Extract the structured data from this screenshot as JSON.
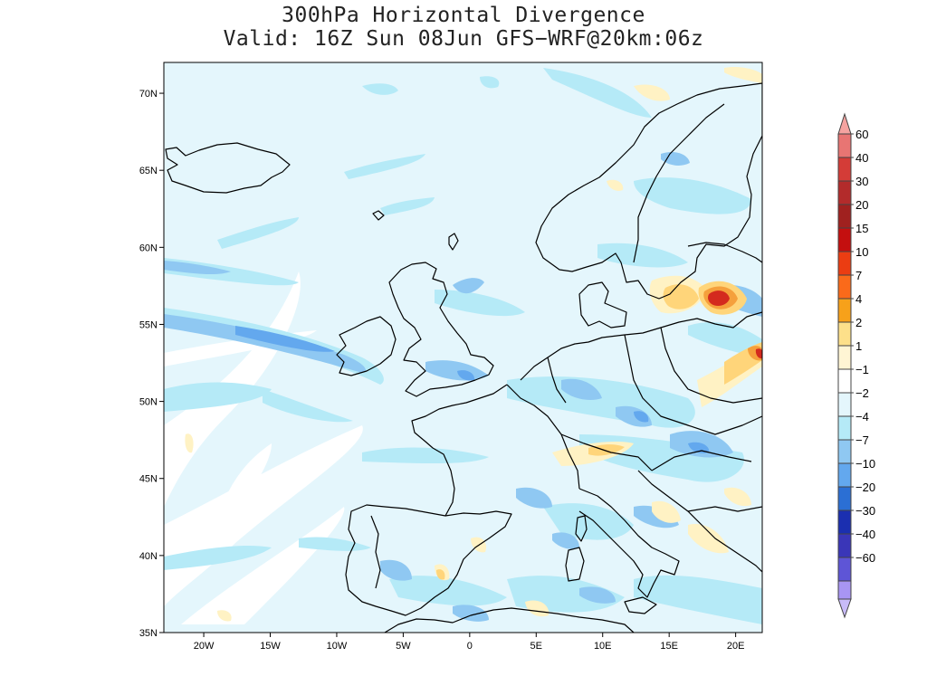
{
  "title": {
    "line1": "300hPa Horizontal Divergence",
    "line2": "Valid: 16Z Sun 08Jun GFS−WRF@20km:06z"
  },
  "map": {
    "lon_range": [
      -23,
      22
    ],
    "lat_range": [
      35,
      72
    ],
    "x_ticks": [
      {
        "value": -20,
        "label": "20W"
      },
      {
        "value": -15,
        "label": "15W"
      },
      {
        "value": -10,
        "label": "10W"
      },
      {
        "value": -5,
        "label": "5W"
      },
      {
        "value": 0,
        "label": "0"
      },
      {
        "value": 5,
        "label": "5E"
      },
      {
        "value": 10,
        "label": "10E"
      },
      {
        "value": 15,
        "label": "15E"
      },
      {
        "value": 20,
        "label": "20E"
      }
    ],
    "y_ticks": [
      {
        "value": 70,
        "label": "70N"
      },
      {
        "value": 65,
        "label": "65N"
      },
      {
        "value": 60,
        "label": "60N"
      },
      {
        "value": 55,
        "label": "55N"
      },
      {
        "value": 50,
        "label": "50N"
      },
      {
        "value": 45,
        "label": "45N"
      },
      {
        "value": 40,
        "label": "40N"
      },
      {
        "value": 35,
        "label": "35N"
      }
    ],
    "field_colors": {
      "background": "#e4f6fc",
      "neutral": "#ffffff",
      "light_negative": "#b5eaf7",
      "medium_negative": "#8fc8f2",
      "strong_negative": "#63a8ee",
      "light_positive": "#fff2c4",
      "medium_positive": "#ffd57a",
      "strong_positive": "#f5a03c",
      "max_positive": "#d42a1e",
      "coast": "#000000"
    }
  },
  "colorbar": {
    "levels": [
      {
        "label": "60",
        "color": "#e87573"
      },
      {
        "label": "40",
        "color": "#d43c37"
      },
      {
        "label": "30",
        "color": "#b32b2b"
      },
      {
        "label": "20",
        "color": "#a0211f"
      },
      {
        "label": "15",
        "color": "#c40f0f"
      },
      {
        "label": "10",
        "color": "#eb3d12"
      },
      {
        "label": "7",
        "color": "#fa6a1a"
      },
      {
        "label": "4",
        "color": "#f7a11a"
      },
      {
        "label": "2",
        "color": "#fde08a"
      },
      {
        "label": "1",
        "color": "#fff5d4"
      },
      {
        "label": "−1",
        "color": "#ffffff"
      },
      {
        "label": "−2",
        "color": "#e4f6fc"
      },
      {
        "label": "−4",
        "color": "#b5eaf7"
      },
      {
        "label": "−7",
        "color": "#8fc8f2"
      },
      {
        "label": "−10",
        "color": "#63a8ee"
      },
      {
        "label": "−20",
        "color": "#2b6fd4"
      },
      {
        "label": "−30",
        "color": "#1b2fb0"
      },
      {
        "label": "−40",
        "color": "#3a36b8"
      },
      {
        "label": "−60",
        "color": "#5e55d6"
      }
    ],
    "top_arrow_color": "#f5a3a0",
    "bottom_arrow_color": "#c8bbf8",
    "extra_color": "#a895f3"
  }
}
